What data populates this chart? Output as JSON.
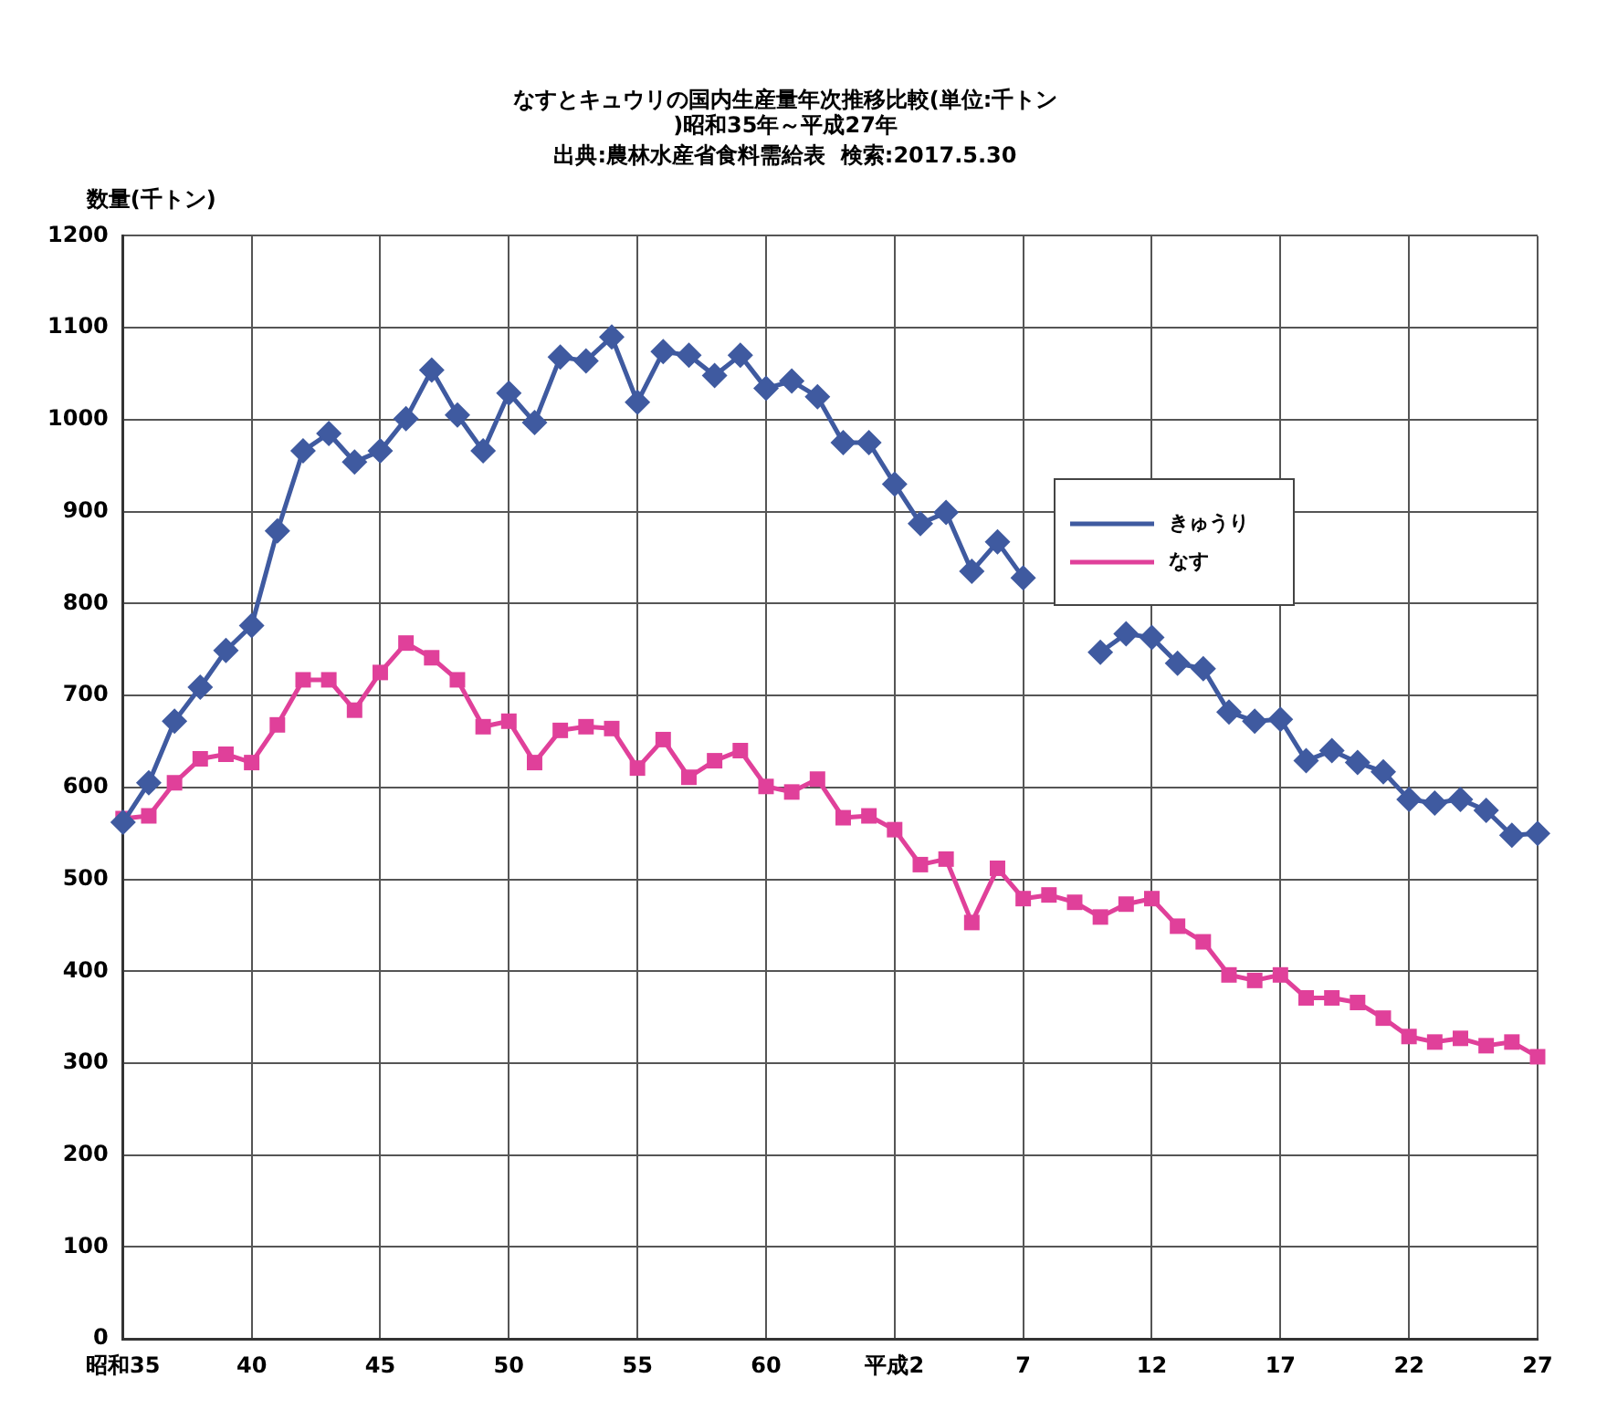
{
  "chart_data": {
    "type": "line",
    "title": "なすとキュウリの国内生産量年次推移比較(単位:千トン\n)昭和35年～平成27年",
    "subtitle": "出典:農林水産省食料需給表  検索:2017.5.30",
    "ylabel": "数量(千トン)",
    "categories": [
      "昭和35",
      null,
      null,
      null,
      null,
      "40",
      null,
      null,
      null,
      null,
      "45",
      null,
      null,
      null,
      null,
      "50",
      null,
      null,
      null,
      null,
      "55",
      null,
      null,
      null,
      null,
      "60",
      null,
      null,
      null,
      null,
      "平成2",
      null,
      null,
      null,
      null,
      "7",
      null,
      null,
      null,
      null,
      "12",
      null,
      null,
      null,
      null,
      "17",
      null,
      null,
      null,
      null,
      "22",
      null,
      null,
      null,
      null,
      "27"
    ],
    "series": [
      {
        "name": "きゅうり",
        "color": "#3f5aa0",
        "marker": "diamond",
        "values": [
          562,
          605,
          672,
          709,
          749,
          776,
          879,
          966,
          985,
          954,
          966,
          1001,
          1054,
          1005,
          966,
          1029,
          997,
          1068,
          1064,
          1090,
          1019,
          1074,
          1070,
          1048,
          1070,
          1034,
          1042,
          1025,
          975,
          975,
          930,
          887,
          899,
          835,
          867,
          828,
          null,
          null,
          747,
          767,
          763,
          735,
          729,
          682,
          672,
          674,
          629,
          640,
          627,
          617,
          587,
          583,
          587,
          575,
          548,
          550
        ]
      },
      {
        "name": "なす",
        "color": "#e0409a",
        "marker": "square",
        "values": [
          566,
          569,
          605,
          631,
          636,
          627,
          668,
          717,
          717,
          684,
          725,
          757,
          741,
          717,
          666,
          672,
          627,
          662,
          666,
          664,
          621,
          652,
          611,
          629,
          640,
          601,
          595,
          609,
          567,
          569,
          554,
          516,
          522,
          453,
          512,
          479,
          483,
          475,
          459,
          473,
          479,
          449,
          432,
          396,
          390,
          396,
          371,
          371,
          366,
          349,
          329,
          323,
          327,
          319,
          323,
          307
        ]
      }
    ],
    "ylim": [
      0,
      1200
    ],
    "yticks": [
      0,
      100,
      200,
      300,
      400,
      500,
      600,
      700,
      800,
      900,
      1000,
      1100,
      1200
    ],
    "grid": true,
    "legend": "right",
    "line_style": "solid"
  }
}
